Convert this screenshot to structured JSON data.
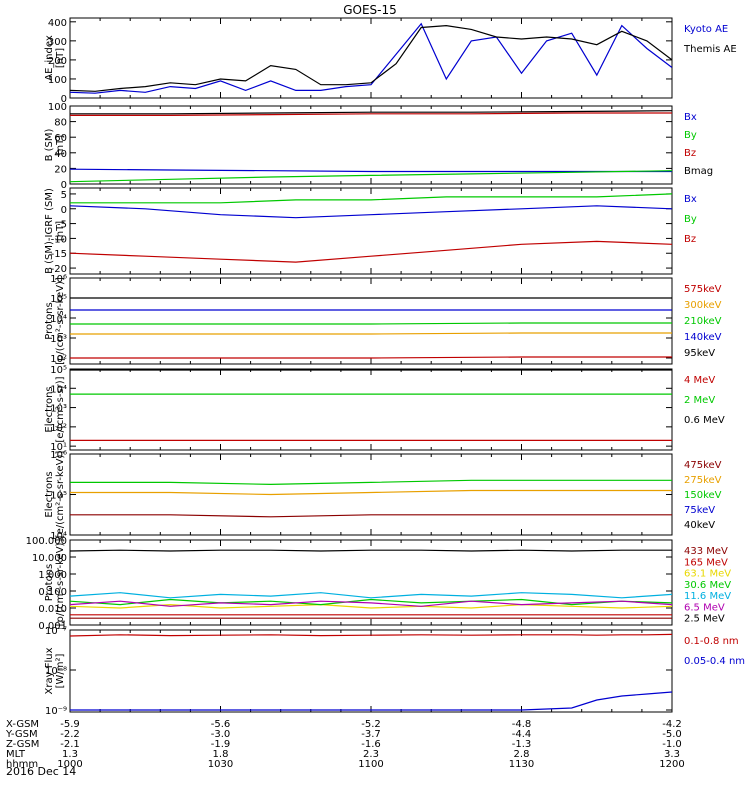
{
  "title": "GOES-15",
  "date": "2016 Dec 14",
  "colors": {
    "black": "#000000",
    "red": "#c00000",
    "orange": "#e8a000",
    "yellow": "#e8d800",
    "green": "#00c800",
    "cyan": "#00b0e0",
    "blue": "#0000d0",
    "purple": "#b000b0",
    "darkred": "#8b0000"
  },
  "footer": {
    "rows": [
      {
        "label": "X-GSM",
        "values": [
          "-5.9",
          "-5.6",
          "-5.2",
          "-4.8",
          "-4.2"
        ]
      },
      {
        "label": "Y-GSM",
        "values": [
          "-2.2",
          "-3.0",
          "-3.7",
          "-4.4",
          "-5.0"
        ]
      },
      {
        "label": "Z-GSM",
        "values": [
          "-2.1",
          "-1.9",
          "-1.6",
          "-1.3",
          "-1.0"
        ]
      },
      {
        "label": "MLT",
        "values": [
          "1.3",
          "1.8",
          "2.3",
          "2.8",
          "3.3"
        ]
      },
      {
        "label": "hhmm",
        "values": [
          "1000",
          "1030",
          "1100",
          "1130",
          "1200"
        ]
      }
    ]
  },
  "chart_data": [
    {
      "type": "line",
      "id": "ae",
      "ylabel": "AE_index",
      "yunit": "[nT]",
      "ylim": [
        0,
        420
      ],
      "yticks": [
        "0",
        "100",
        "200",
        "300",
        "400"
      ],
      "ytick_values": [
        0,
        100,
        200,
        300,
        400
      ],
      "x": [
        0,
        5,
        10,
        15,
        20,
        25,
        30,
        35,
        40,
        45,
        50,
        55,
        60,
        65,
        70,
        75,
        80,
        85,
        90,
        95,
        100,
        105,
        110,
        115,
        120
      ],
      "series": [
        {
          "name": "Kyoto AE",
          "color": "blue",
          "values": [
            30,
            25,
            40,
            30,
            60,
            50,
            90,
            40,
            90,
            40,
            40,
            60,
            70,
            230,
            390,
            100,
            300,
            320,
            130,
            300,
            340,
            120,
            380,
            260,
            160
          ]
        },
        {
          "name": "Themis AE",
          "color": "black",
          "values": [
            40,
            35,
            50,
            60,
            80,
            70,
            100,
            90,
            170,
            150,
            70,
            70,
            80,
            180,
            370,
            380,
            360,
            320,
            310,
            320,
            310,
            280,
            350,
            300,
            200
          ]
        }
      ]
    },
    {
      "type": "line",
      "id": "bsm",
      "ylabel": "B (SM)",
      "yunit": "[nT]",
      "ylim": [
        0,
        100
      ],
      "yticks": [
        "0",
        "20",
        "40",
        "60",
        "80",
        "100"
      ],
      "ytick_values": [
        0,
        20,
        40,
        60,
        80,
        100
      ],
      "x": [
        0,
        20,
        40,
        60,
        80,
        100,
        120
      ],
      "series": [
        {
          "name": "Bx",
          "color": "blue",
          "values": [
            19,
            18,
            17,
            16,
            16,
            16,
            16
          ]
        },
        {
          "name": "By",
          "color": "green",
          "values": [
            3,
            6,
            9,
            11,
            13,
            15,
            17
          ]
        },
        {
          "name": "Bz",
          "color": "red",
          "values": [
            88,
            88,
            89,
            90,
            90,
            91,
            91
          ]
        },
        {
          "name": "Bmag",
          "color": "black",
          "values": [
            90,
            90,
            91,
            92,
            92,
            93,
            94
          ]
        }
      ]
    },
    {
      "type": "line",
      "id": "bigrf",
      "ylabel": "B (SM)-IGRF (SM)",
      "yunit": "[nT]",
      "ylim": [
        -22,
        7
      ],
      "yticks": [
        "-20",
        "-15",
        "-10",
        "-5",
        "0",
        "5"
      ],
      "ytick_values": [
        -20,
        -15,
        -10,
        -5,
        0,
        5
      ],
      "x": [
        0,
        15,
        30,
        45,
        60,
        75,
        90,
        105,
        120
      ],
      "series": [
        {
          "name": "Bx",
          "color": "blue",
          "values": [
            1,
            0,
            -2,
            -3,
            -2,
            -1,
            0,
            1,
            0
          ]
        },
        {
          "name": "By",
          "color": "green",
          "values": [
            2,
            2,
            2,
            3,
            3,
            4,
            4,
            4,
            5
          ]
        },
        {
          "name": "Bz",
          "color": "red",
          "values": [
            -15,
            -16,
            -17,
            -18,
            -16,
            -14,
            -12,
            -11,
            -12
          ]
        }
      ]
    },
    {
      "type": "line",
      "id": "protons1",
      "log": true,
      "ylabel": "Protons",
      "yunit": "[p/(cm²-s-sr-keV)]",
      "ylim": [
        1.7,
        6
      ],
      "yticks": [
        "10²",
        "10³",
        "10⁴",
        "10⁵",
        "10⁶"
      ],
      "ytick_values": [
        2,
        3,
        4,
        5,
        6
      ],
      "x": [
        0,
        30,
        60,
        90,
        120
      ],
      "series": [
        {
          "name": "575keV",
          "color": "red",
          "values": [
            2.0,
            2.0,
            2.0,
            2.05,
            2.05
          ]
        },
        {
          "name": "300keV",
          "color": "orange",
          "values": [
            3.2,
            3.2,
            3.2,
            3.25,
            3.25
          ]
        },
        {
          "name": "210keV",
          "color": "green",
          "values": [
            3.7,
            3.7,
            3.7,
            3.75,
            3.75
          ]
        },
        {
          "name": "140keV",
          "color": "blue",
          "values": [
            4.4,
            4.4,
            4.4,
            4.4,
            4.4
          ]
        },
        {
          "name": "95keV",
          "color": "black",
          "values": [
            5.0,
            5.0,
            5.0,
            5.0,
            5.0
          ]
        }
      ]
    },
    {
      "type": "line",
      "id": "electrons1",
      "log": true,
      "ylabel": "Electrons",
      "yunit": "[e/(cm²-s-sr)]",
      "ylim": [
        0.8,
        5
      ],
      "yticks": [
        "10¹",
        "10²",
        "10³",
        "10⁴",
        "10⁵"
      ],
      "ytick_values": [
        1,
        2,
        3,
        4,
        5
      ],
      "x": [
        0,
        30,
        60,
        90,
        120
      ],
      "series": [
        {
          "name": "4 MeV",
          "color": "red",
          "values": [
            1.3,
            1.3,
            1.3,
            1.3,
            1.3
          ]
        },
        {
          "name": "2 MeV",
          "color": "green",
          "values": [
            3.7,
            3.7,
            3.7,
            3.7,
            3.7
          ]
        },
        {
          "name": "0.6 MeV",
          "color": "black",
          "values": [
            4.95,
            4.95,
            4.95,
            4.95,
            4.95
          ]
        }
      ]
    },
    {
      "type": "line",
      "id": "electrons2",
      "log": true,
      "ylabel": "Electrons",
      "yunit": "[e/(cm²-s-sr-keV)]",
      "ylim": [
        4,
        6
      ],
      "yticks": [
        "10⁴",
        "10⁵",
        "10⁶"
      ],
      "ytick_values": [
        4,
        5,
        6
      ],
      "x": [
        0,
        20,
        40,
        60,
        80,
        100,
        120
      ],
      "series": [
        {
          "name": "475keV",
          "color": "darkred",
          "values": [
            4.5,
            4.5,
            4.45,
            4.5,
            4.5,
            4.5,
            4.5
          ]
        },
        {
          "name": "275keV",
          "color": "orange",
          "values": [
            5.05,
            5.05,
            5.0,
            5.05,
            5.1,
            5.1,
            5.1
          ]
        },
        {
          "name": "150keV",
          "color": "green",
          "values": [
            5.3,
            5.3,
            5.25,
            5.3,
            5.35,
            5.35,
            5.35
          ]
        },
        {
          "name": "75keV",
          "color": "blue",
          "values": [
            6.3,
            6.3,
            6.3,
            6.3,
            6.3,
            6.3,
            6.3
          ]
        },
        {
          "name": "40keV",
          "color": "black",
          "values": [
            6.5,
            6.5,
            6.5,
            6.5,
            6.5,
            6.5,
            6.5
          ]
        }
      ]
    },
    {
      "type": "line",
      "id": "protons2",
      "log": true,
      "ylabel": "Protons",
      "yunit": "[p/(cm²-s-sr-keV)]",
      "ylim": [
        -3,
        2
      ],
      "yticks": [
        "0.001",
        "0.010",
        "0.100",
        "1.000",
        "10.000",
        "100.000"
      ],
      "ytick_values": [
        -3,
        -2,
        -1,
        0,
        1,
        2
      ],
      "x": [
        0,
        10,
        20,
        30,
        40,
        50,
        60,
        70,
        80,
        90,
        100,
        110,
        120
      ],
      "series": [
        {
          "name": "433 MeV",
          "color": "darkred",
          "values": [
            -2.6,
            -2.6,
            -2.6,
            -2.6,
            -2.6,
            -2.6,
            -2.6,
            -2.6,
            -2.6,
            -2.6,
            -2.6,
            -2.6,
            -2.6
          ]
        },
        {
          "name": "165 MeV",
          "color": "red",
          "values": [
            -2.4,
            -2.4,
            -2.4,
            -2.4,
            -2.4,
            -2.4,
            -2.4,
            -2.4,
            -2.4,
            -2.4,
            -2.4,
            -2.4,
            -2.4
          ]
        },
        {
          "name": "63.1 MeV",
          "color": "yellow",
          "values": [
            -1.9,
            -2.0,
            -1.8,
            -2.0,
            -1.9,
            -1.8,
            -2.0,
            -1.9,
            -2.0,
            -1.8,
            -1.9,
            -2.0,
            -1.9
          ]
        },
        {
          "name": "30.6 MeV",
          "color": "green",
          "values": [
            -1.6,
            -1.8,
            -1.5,
            -1.7,
            -1.6,
            -1.8,
            -1.5,
            -1.7,
            -1.6,
            -1.5,
            -1.8,
            -1.6,
            -1.7
          ]
        },
        {
          "name": "11.6 MeV",
          "color": "cyan",
          "values": [
            -1.3,
            -1.1,
            -1.4,
            -1.2,
            -1.3,
            -1.1,
            -1.4,
            -1.2,
            -1.3,
            -1.1,
            -1.2,
            -1.4,
            -1.2
          ]
        },
        {
          "name": "6.5 MeV",
          "color": "purple",
          "values": [
            -1.8,
            -1.6,
            -1.9,
            -1.7,
            -1.8,
            -1.6,
            -1.7,
            -1.9,
            -1.6,
            -1.8,
            -1.7,
            -1.6,
            -1.8
          ]
        },
        {
          "name": "2.5 MeV",
          "color": "black",
          "values": [
            1.35,
            1.4,
            1.35,
            1.4,
            1.4,
            1.35,
            1.4,
            1.4,
            1.35,
            1.4,
            1.35,
            1.4,
            1.4
          ]
        }
      ]
    },
    {
      "type": "line",
      "id": "xray",
      "log": true,
      "ylabel": "Xray Flux",
      "yunit": "[W/m²]",
      "ylim": [
        -9.05,
        -7
      ],
      "yticks": [
        "10⁻⁹",
        "10⁻⁸",
        "10⁻⁷"
      ],
      "ytick_values": [
        -9,
        -8,
        -7
      ],
      "x": [
        0,
        10,
        20,
        30,
        40,
        50,
        60,
        70,
        80,
        90,
        100,
        105,
        110,
        115,
        120
      ],
      "series": [
        {
          "name": "0.1-0.8 nm",
          "color": "red",
          "values": [
            -7.15,
            -7.12,
            -7.14,
            -7.13,
            -7.12,
            -7.14,
            -7.13,
            -7.12,
            -7.13,
            -7.12,
            -7.12,
            -7.13,
            -7.12,
            -7.12,
            -7.11
          ]
        },
        {
          "name": "0.05-0.4 nm",
          "color": "blue",
          "values": [
            -9.0,
            -9.0,
            -9.0,
            -9.0,
            -9.0,
            -9.0,
            -9.0,
            -9.0,
            -9.0,
            -9.0,
            -8.95,
            -8.75,
            -8.65,
            -8.6,
            -8.55
          ]
        }
      ]
    }
  ]
}
